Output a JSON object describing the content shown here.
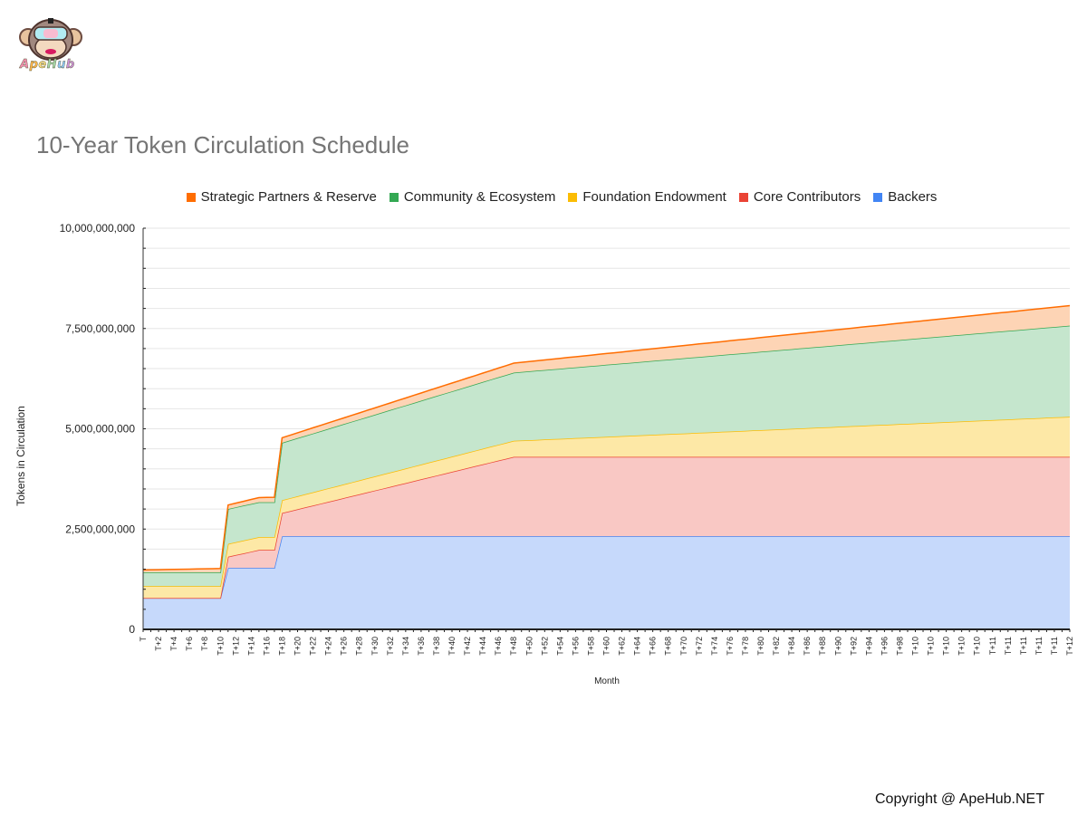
{
  "brand": {
    "name": "ApeHub",
    "copyright": "Copyright @ ApeHub.NET",
    "letter_colors": [
      "#f48fb1",
      "#ffb74d",
      "#ffe082",
      "#a5d6a7",
      "#90caf9",
      "#ce93d8"
    ]
  },
  "chart_data": {
    "type": "area",
    "stacked": true,
    "title": "10-Year Token Circulation Schedule",
    "xlabel": "Month",
    "ylabel": "Tokens in Circulation",
    "ylim": [
      0,
      10000000000
    ],
    "y_ticks": [
      "0",
      "2,500,000,000",
      "5,000,000,000",
      "7,500,000,000",
      "10,000,000,000"
    ],
    "y_tick_values": [
      0,
      2500000000,
      5000000000,
      7500000000,
      10000000000
    ],
    "legend_position": "top",
    "grid": true,
    "x_tick_labels": [
      "T",
      "T+2",
      "T+4",
      "T+6",
      "T+8",
      "T+10",
      "T+12",
      "T+14",
      "T+16",
      "T+18",
      "T+20",
      "T+22",
      "T+24",
      "T+26",
      "T+28",
      "T+30",
      "T+32",
      "T+34",
      "T+36",
      "T+38",
      "T+40",
      "T+42",
      "T+44",
      "T+46",
      "T+48",
      "T+50",
      "T+52",
      "T+54",
      "T+56",
      "T+58",
      "T+60",
      "T+62",
      "T+64",
      "T+66",
      "T+68",
      "T+70",
      "T+72",
      "T+74",
      "T+76",
      "T+78",
      "T+80",
      "T+82",
      "T+84",
      "T+86",
      "T+88",
      "T+90",
      "T+92",
      "T+94",
      "T+96",
      "T+98",
      "T+10",
      "T+10",
      "T+10",
      "T+10",
      "T+10",
      "T+11",
      "T+11",
      "T+11",
      "T+11",
      "T+11",
      "T+12"
    ],
    "x_tick_months": [
      0,
      2,
      4,
      6,
      8,
      10,
      12,
      14,
      16,
      18,
      20,
      22,
      24,
      26,
      28,
      30,
      32,
      34,
      36,
      38,
      40,
      42,
      44,
      46,
      48,
      50,
      52,
      54,
      56,
      58,
      60,
      62,
      64,
      66,
      68,
      70,
      72,
      74,
      76,
      78,
      80,
      82,
      84,
      86,
      88,
      90,
      92,
      94,
      96,
      98,
      100,
      102,
      104,
      106,
      108,
      110,
      112,
      114,
      116,
      118,
      120
    ],
    "series": [
      {
        "name": "Backers",
        "color": "#4285f4",
        "fill": "#c6d9fb",
        "breakpoints": [
          [
            0,
            780000000
          ],
          [
            10,
            780000000
          ],
          [
            11,
            1530000000
          ],
          [
            17,
            1530000000
          ],
          [
            18,
            2320000000
          ],
          [
            120,
            2320000000
          ]
        ]
      },
      {
        "name": "Core Contributors",
        "color": "#ea4335",
        "fill": "#f9c8c4",
        "breakpoints": [
          [
            0,
            0
          ],
          [
            10,
            0
          ],
          [
            11,
            280000000
          ],
          [
            15,
            450000000
          ],
          [
            17,
            450000000
          ],
          [
            18,
            580000000
          ],
          [
            48,
            1980000000
          ],
          [
            120,
            1980000000
          ]
        ]
      },
      {
        "name": "Foundation Endowment",
        "color": "#fbbc04",
        "fill": "#fde8a6",
        "breakpoints": [
          [
            0,
            300000000
          ],
          [
            10,
            300000000
          ],
          [
            11,
            320000000
          ],
          [
            18,
            320000000
          ],
          [
            48,
            400000000
          ],
          [
            120,
            1000000000
          ]
        ]
      },
      {
        "name": "Community & Ecosystem",
        "color": "#34a853",
        "fill": "#c5e6cd",
        "breakpoints": [
          [
            0,
            340000000
          ],
          [
            10,
            340000000
          ],
          [
            11,
            870000000
          ],
          [
            17,
            870000000
          ],
          [
            18,
            1430000000
          ],
          [
            48,
            1700000000
          ],
          [
            120,
            2270000000
          ]
        ]
      },
      {
        "name": "Strategic Partners & Reserve",
        "color": "#ff6d01",
        "fill": "#fdd4b5",
        "breakpoints": [
          [
            0,
            60000000
          ],
          [
            120,
            500000000
          ]
        ]
      }
    ]
  }
}
